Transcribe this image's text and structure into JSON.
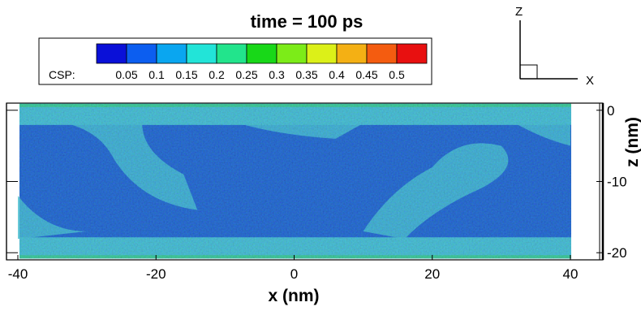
{
  "chart_data": {
    "type": "heatmap",
    "title": "time = 100 ps",
    "xlabel": "x (nm)",
    "ylabel": "z (nm)",
    "xlim": [
      -40,
      40
    ],
    "ylim": [
      -21,
      1
    ],
    "x_ticks": [
      "-40",
      "-20",
      "0",
      "20",
      "40"
    ],
    "y_ticks": [
      "0",
      "-10",
      "-20"
    ],
    "colorbar": {
      "label": "CSP:",
      "ticks": [
        "0.05",
        "0.1",
        "0.15",
        "0.2",
        "0.25",
        "0.3",
        "0.35",
        "0.4",
        "0.45",
        "0.5"
      ],
      "levels": [
        0.05,
        0.1,
        0.15,
        0.2,
        0.25,
        0.3,
        0.35,
        0.4,
        0.45,
        0.5
      ],
      "colors": [
        "#0a10d8",
        "#0c5ef0",
        "#0aa6f0",
        "#22e4d8",
        "#22e48c",
        "#18d818",
        "#7cec18",
        "#dcf018",
        "#f4b014",
        "#f45c10",
        "#e81010"
      ]
    },
    "triad": {
      "vertical": "Z",
      "horizontal": "X"
    },
    "field_colors": {
      "core": "#1b45cc",
      "surface": "#4ec0d0"
    }
  }
}
